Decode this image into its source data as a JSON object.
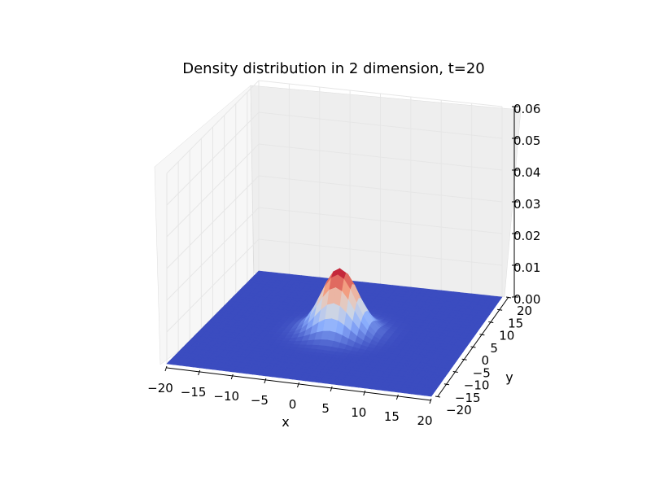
{
  "chart_data": {
    "type": "surface",
    "title": "Density distribution in 2 dimension, t=20",
    "xlabel": "x",
    "ylabel": "y",
    "zlabel": "",
    "xlim": [
      -20,
      20
    ],
    "ylim": [
      -20,
      20
    ],
    "zlim": [
      0.0,
      0.06
    ],
    "x_ticks": [
      "−20",
      "−15",
      "−10",
      "−5",
      "0",
      "5",
      "10",
      "15",
      "20"
    ],
    "y_ticks": [
      "−20",
      "−15",
      "−10",
      "−5",
      "0",
      "5",
      "10",
      "15",
      "20"
    ],
    "z_ticks": [
      "0.00",
      "0.01",
      "0.02",
      "0.03",
      "0.04",
      "0.05",
      "0.06"
    ],
    "peak": {
      "x": 0,
      "y": 0,
      "z": 0.02
    },
    "spread_sigma": 2.8,
    "colormap": "coolwarm",
    "colors": {
      "low": "#3b4cc0",
      "mid": "#dddddd",
      "high": "#b40426",
      "pane": "#f2f2f2",
      "grid": "#e6e6e6"
    },
    "grid": true
  }
}
